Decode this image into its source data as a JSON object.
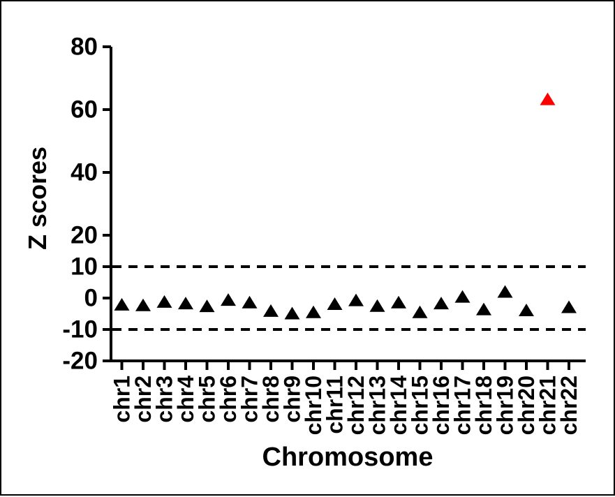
{
  "chart_data": {
    "type": "scatter",
    "title": "",
    "xlabel": "Chromosome",
    "ylabel": "Z scores",
    "categories": [
      "chr1",
      "chr2",
      "chr3",
      "chr4",
      "chr5",
      "chr6",
      "chr7",
      "chr8",
      "chr9",
      "chr10",
      "chr11",
      "chr12",
      "chr13",
      "chr14",
      "chr15",
      "chr16",
      "chr17",
      "chr18",
      "chr19",
      "chr20",
      "chr21",
      "chr22"
    ],
    "values": [
      -2.2,
      -2.4,
      -1.3,
      -1.8,
      -2.7,
      -0.7,
      -1.5,
      -4.2,
      -5.0,
      -4.6,
      -2.0,
      -0.8,
      -2.6,
      -1.5,
      -4.6,
      -1.8,
      0.3,
      -3.7,
      1.9,
      -4.0,
      63.2,
      -3.0
    ],
    "ylim": [
      -20,
      80
    ],
    "yticks": [
      80,
      60,
      40,
      20,
      10,
      0,
      -10,
      -20
    ],
    "threshold_lines": [
      10,
      -10
    ],
    "threshold_style": "dashed",
    "marker": "triangle-up",
    "marker_color": "#000000",
    "highlight": {
      "category": "chr21",
      "color": "#FE0000"
    },
    "axis_color": "#000000",
    "grid": false,
    "legend": "none"
  }
}
